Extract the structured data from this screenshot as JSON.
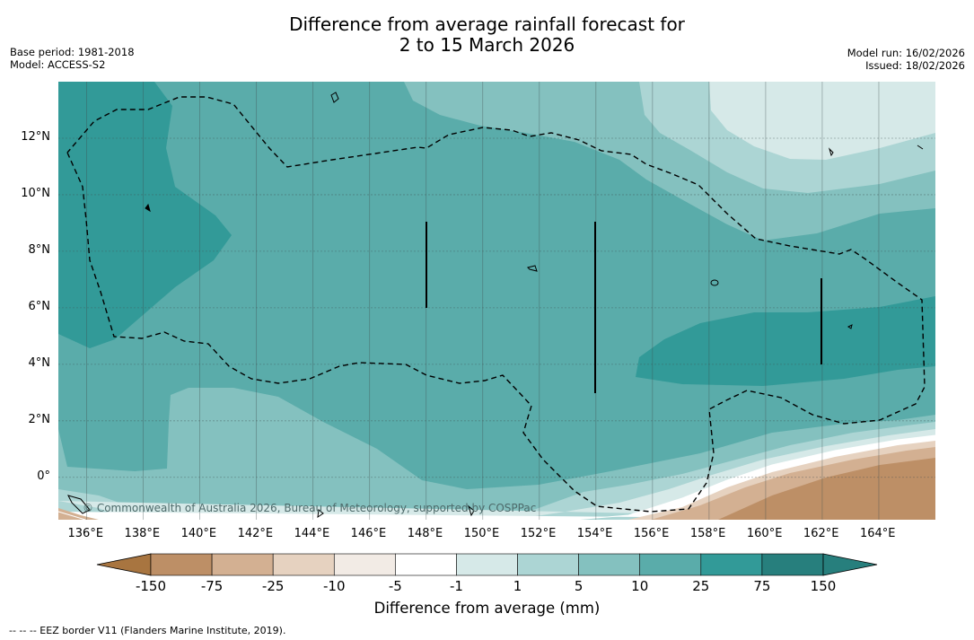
{
  "title_line1": "Difference from average rainfall forecast for",
  "title_line2": "2 to 15 March 2026",
  "meta_left": {
    "base_period": "Base period: 1981-2018",
    "model": "Model: ACCESS-S2"
  },
  "meta_right": {
    "model_run": "Model run: 16/02/2026",
    "issued": "Issued: 18/02/2026"
  },
  "lon_labels": [
    "136°E",
    "138°E",
    "140°E",
    "142°E",
    "144°E",
    "146°E",
    "148°E",
    "150°E",
    "152°E",
    "154°E",
    "156°E",
    "158°E",
    "160°E",
    "162°E",
    "164°E"
  ],
  "lat_labels": [
    "12°N",
    "10°N",
    "8°N",
    "6°N",
    "4°N",
    "2°N",
    "0°"
  ],
  "credit": "© Commonwealth of Australia 2026, Bureau of Meteorology, supported by COSPPac",
  "colorbar": {
    "title": "Difference from average (mm)",
    "ticks": [
      "-150",
      "-75",
      "-25",
      "-10",
      "-5",
      "-1",
      "1",
      "5",
      "10",
      "25",
      "75",
      "150"
    ],
    "colors": [
      "#a87540",
      "#bd8f66",
      "#d3b092",
      "#e6d2c0",
      "#f2ebe5",
      "#ffffff",
      "#d6e9e8",
      "#acd5d4",
      "#84c1bf",
      "#5aacaa",
      "#329a98",
      "#277f7d"
    ]
  },
  "footnote": "--  --  -- EEZ border V11 (Flanders Marine Institute, 2019)."
}
